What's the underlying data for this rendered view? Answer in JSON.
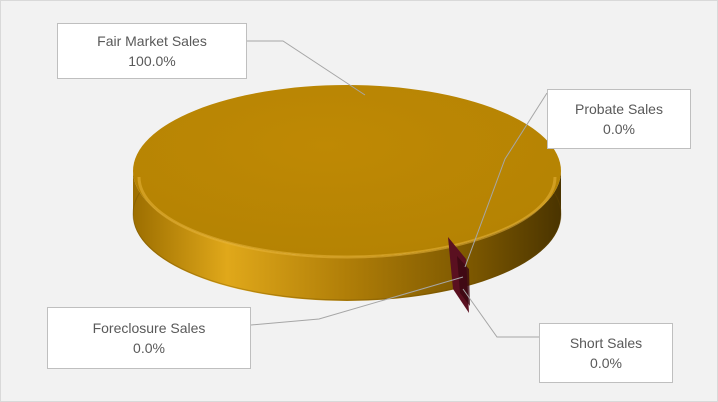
{
  "chart_data": {
    "type": "pie",
    "title": "",
    "style": "3d",
    "legend": "none",
    "slices": [
      {
        "name": "Fair Market Sales",
        "value": 100.0,
        "label": "100.0%",
        "color": "#b8860b"
      },
      {
        "name": "Probate Sales",
        "value": 0.0,
        "label": "0.0%",
        "color": "#5a1020"
      },
      {
        "name": "Short Sales",
        "value": 0.0,
        "label": "0.0%",
        "color": "#5a1020"
      },
      {
        "name": "Foreclosure Sales",
        "value": 0.0,
        "label": "0.0%",
        "color": "#5a1020"
      }
    ]
  }
}
